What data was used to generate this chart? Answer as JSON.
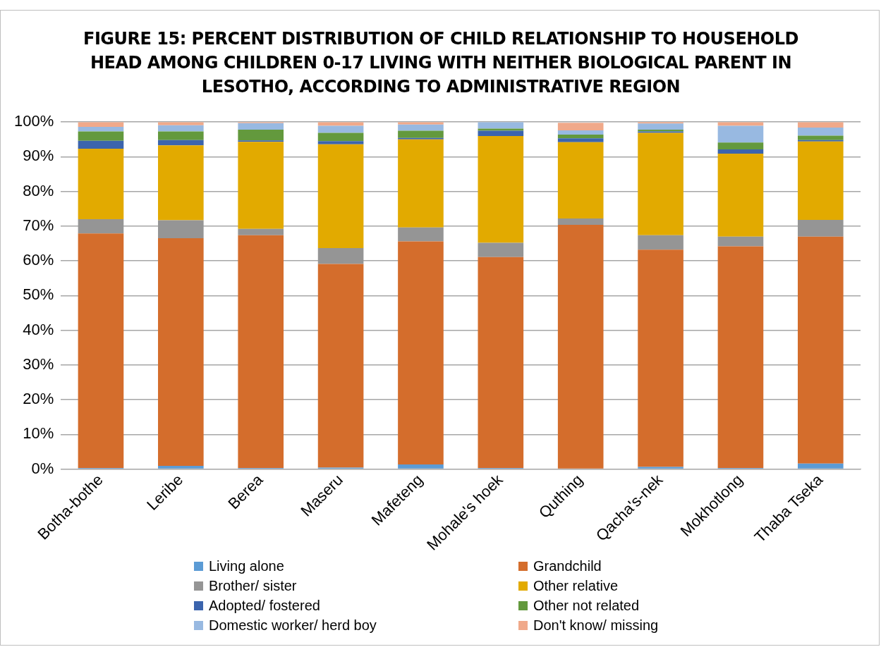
{
  "chart_data": {
    "type": "bar",
    "stacked": true,
    "title": "FIGURE 15: PERCENT DISTRIBUTION OF CHILD RELATIONSHIP TO HOUSEHOLD HEAD AMONG CHILDREN 0-17 LIVING WITH NEITHER BIOLOGICAL PARENT IN LESOTHO, ACCORDING TO ADMINISTRATIVE REGION",
    "categories": [
      "Botha-bothe",
      "Leribe",
      "Berea",
      "Maseru",
      "Mafeteng",
      "Mohale's hoek",
      "Quthing",
      "Qacha's-nek",
      "Mokhotlong",
      "Thaba Tseka"
    ],
    "series": [
      {
        "name": "Living alone",
        "color": "#5b9bd5",
        "values": [
          0.3,
          0.9,
          0.3,
          0.4,
          1.3,
          0.3,
          null,
          0.6,
          0.3,
          1.6
        ]
      },
      {
        "name": "Grandchild",
        "color": "#d46d2c",
        "values": [
          67.6,
          65.6,
          67.1,
          58.7,
          64.3,
          60.8,
          70.4,
          62.6,
          63.9,
          65.4
        ]
      },
      {
        "name": "Brother/ sister",
        "color": "#959595",
        "values": [
          4.1,
          5.2,
          1.8,
          4.6,
          4.0,
          4.1,
          1.8,
          4.2,
          2.8,
          4.8
        ]
      },
      {
        "name": "Other relative",
        "color": "#e2aa00",
        "values": [
          20.3,
          21.6,
          25.1,
          29.9,
          25.4,
          30.8,
          22.0,
          29.5,
          23.9,
          22.6
        ]
      },
      {
        "name": "Adopted/ fostered",
        "color": "#3b64ad",
        "values": [
          2.3,
          1.5,
          0.4,
          0.9,
          0.4,
          1.5,
          1.1,
          0.4,
          1.2,
          0.4
        ]
      },
      {
        "name": "Other not related",
        "color": "#63993d",
        "values": [
          2.7,
          2.5,
          3.1,
          2.4,
          2.1,
          0.6,
          1.1,
          0.5,
          2.0,
          1.3
        ]
      },
      {
        "name": "Domestic worker/ herd boy",
        "color": "#98b9e1",
        "values": [
          1.3,
          1.8,
          1.9,
          2.0,
          1.8,
          1.9,
          1.2,
          1.8,
          4.8,
          2.3
        ]
      },
      {
        "name": "Don't know/ missing",
        "color": "#f0a98a",
        "values": [
          1.4,
          0.9,
          0.3,
          1.1,
          0.7,
          0,
          2.2,
          0.4,
          1.1,
          1.6
        ]
      }
    ],
    "ylim": [
      0,
      100
    ],
    "yticks": [
      {
        "value": 0,
        "label": "0%"
      },
      {
        "value": 10,
        "label": "10%"
      },
      {
        "value": 20,
        "label": "20%"
      },
      {
        "value": 30,
        "label": "30%"
      },
      {
        "value": 40,
        "label": "40%"
      },
      {
        "value": 50,
        "label": "50%"
      },
      {
        "value": 60,
        "label": "60%"
      },
      {
        "value": 70,
        "label": "70%"
      },
      {
        "value": 80,
        "label": "80%"
      },
      {
        "value": 90,
        "label": "90%"
      },
      {
        "value": 100,
        "label": "100%"
      }
    ],
    "grid": "y",
    "legend": "bottom"
  }
}
